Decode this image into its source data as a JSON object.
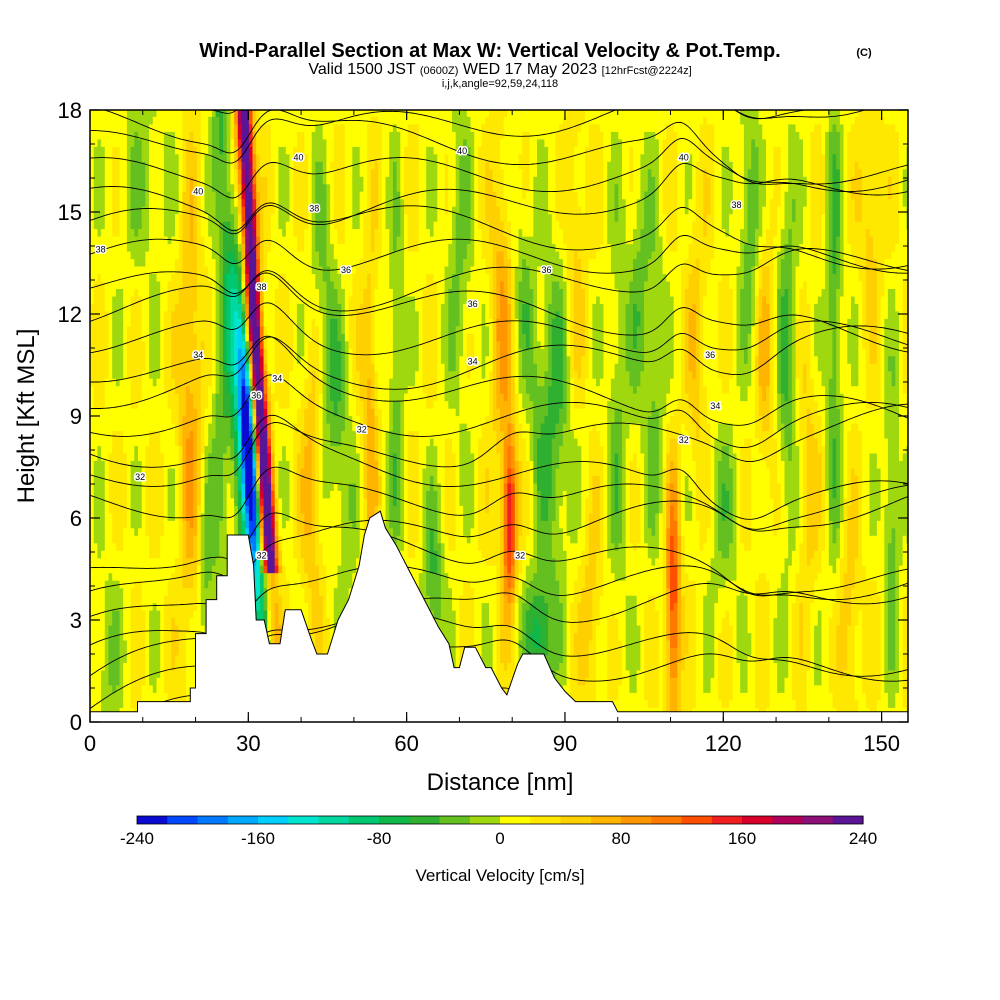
{
  "chart_data": {
    "type": "heatmap",
    "title": "Wind-Parallel Section at Max W: Vertical Velocity & Pot.Temp.",
    "title_mark": "(C)",
    "subtitle": {
      "valid": "Valid 1500 JST",
      "utc": "(0600Z)",
      "date": "WED 17 May 2023",
      "fcst": "[12hrFcst@2224z]"
    },
    "params": "i,j,k,angle=92,59,24,118",
    "xlabel": "Distance [nm]",
    "ylabel": "Height [Kft MSL]",
    "xlim": [
      0,
      155
    ],
    "ylim": [
      0,
      18
    ],
    "xticks": [
      "0",
      "30",
      "60",
      "90",
      "120",
      "150"
    ],
    "yticks": [
      "0",
      "3",
      "6",
      "9",
      "12",
      "15",
      "18"
    ],
    "colorbar": {
      "label": "Vertical Velocity [cm/s]",
      "ticks": [
        "-240",
        "-160",
        "-80",
        "0",
        "80",
        "160",
        "240"
      ],
      "min": -240,
      "max": 240,
      "colors": [
        "#0a0ad2",
        "#0048ff",
        "#0078ff",
        "#00a8ff",
        "#00cfff",
        "#00e5d0",
        "#00d8a0",
        "#00c870",
        "#10b84a",
        "#30b030",
        "#64c020",
        "#a0d810",
        "#ffff00",
        "#ffe800",
        "#ffd000",
        "#ffb400",
        "#ff9600",
        "#ff7800",
        "#ff4e00",
        "#f01e1e",
        "#d8002a",
        "#b0005a",
        "#8c1078",
        "#5a1496"
      ]
    },
    "terrain": [
      [
        0,
        0.3
      ],
      [
        9,
        0.3
      ],
      [
        9,
        0.6
      ],
      [
        19,
        0.6
      ],
      [
        19,
        1.0
      ],
      [
        20,
        1.0
      ],
      [
        20,
        2.6
      ],
      [
        22,
        2.6
      ],
      [
        22,
        3.6
      ],
      [
        24,
        3.6
      ],
      [
        24,
        4.3
      ],
      [
        26,
        4.3
      ],
      [
        26,
        5.5
      ],
      [
        30,
        5.5
      ],
      [
        31,
        4.6
      ],
      [
        31.5,
        3.0
      ],
      [
        33,
        3.0
      ],
      [
        34,
        2.3
      ],
      [
        36,
        2.3
      ],
      [
        37,
        3.3
      ],
      [
        40,
        3.3
      ],
      [
        42,
        2.4
      ],
      [
        43,
        2.0
      ],
      [
        45,
        2.0
      ],
      [
        47,
        3.0
      ],
      [
        49,
        3.6
      ],
      [
        51,
        4.6
      ],
      [
        52,
        5.5
      ],
      [
        53,
        6.0
      ],
      [
        55,
        6.2
      ],
      [
        56,
        5.7
      ],
      [
        58,
        5.2
      ],
      [
        60,
        4.6
      ],
      [
        62,
        4.0
      ],
      [
        64,
        3.4
      ],
      [
        66,
        2.8
      ],
      [
        68,
        2.3
      ],
      [
        69,
        1.6
      ],
      [
        70,
        1.6
      ],
      [
        71,
        2.2
      ],
      [
        73,
        2.2
      ],
      [
        75,
        1.6
      ],
      [
        76,
        1.6
      ],
      [
        78,
        1.0
      ],
      [
        79,
        0.8
      ],
      [
        81,
        1.7
      ],
      [
        82,
        2.0
      ],
      [
        86,
        2.0
      ],
      [
        88,
        1.3
      ],
      [
        90,
        0.9
      ],
      [
        92,
        0.6
      ],
      [
        99,
        0.6
      ],
      [
        100,
        0.3
      ],
      [
        155,
        0.3
      ]
    ],
    "contour_labels": [
      {
        "text": "40",
        "x": 20.5,
        "y": 15.6
      },
      {
        "text": "40",
        "x": 39.5,
        "y": 16.6
      },
      {
        "text": "40",
        "x": 70.5,
        "y": 16.8
      },
      {
        "text": "40",
        "x": 112.5,
        "y": 16.6
      },
      {
        "text": "38",
        "x": 2,
        "y": 13.9
      },
      {
        "text": "38",
        "x": 42.5,
        "y": 15.1
      },
      {
        "text": "38",
        "x": 122.5,
        "y": 15.2
      },
      {
        "text": "38",
        "x": 32.5,
        "y": 12.8
      },
      {
        "text": "36",
        "x": 48.5,
        "y": 13.3
      },
      {
        "text": "36",
        "x": 86.5,
        "y": 13.3
      },
      {
        "text": "36",
        "x": 72.5,
        "y": 12.3
      },
      {
        "text": "36",
        "x": 117.5,
        "y": 10.8
      },
      {
        "text": "36",
        "x": 31.5,
        "y": 9.6
      },
      {
        "text": "34",
        "x": 20.5,
        "y": 10.8
      },
      {
        "text": "34",
        "x": 35.5,
        "y": 10.1
      },
      {
        "text": "34",
        "x": 72.5,
        "y": 10.6
      },
      {
        "text": "34",
        "x": 118.5,
        "y": 9.3
      },
      {
        "text": "32",
        "x": 51.5,
        "y": 8.6
      },
      {
        "text": "32",
        "x": 9.5,
        "y": 7.2
      },
      {
        "text": "32",
        "x": 112.5,
        "y": 8.3
      },
      {
        "text": "32",
        "x": 32.5,
        "y": 4.9
      },
      {
        "text": "32",
        "x": 81.5,
        "y": 4.9
      }
    ]
  }
}
